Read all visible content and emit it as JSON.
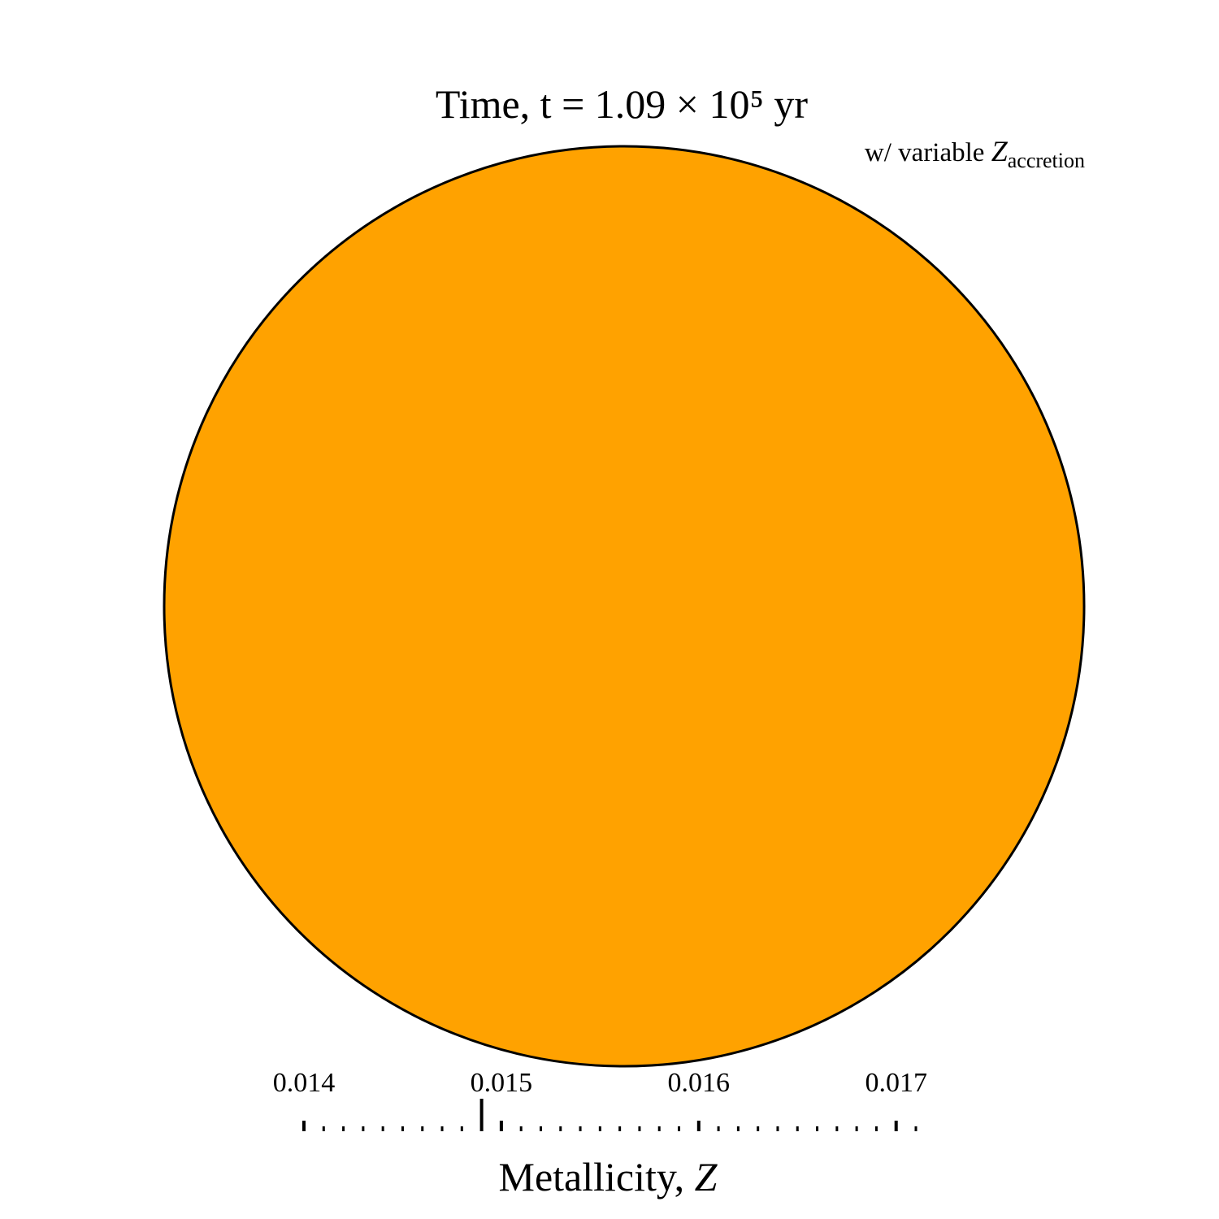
{
  "chart_data": {
    "type": "indicator",
    "title": "Time, t = 1.09 × 10⁵ yr",
    "annotation": [
      "w/ variable ",
      "Z",
      "accretion"
    ],
    "xlabel": [
      "Metallicity, ",
      "Z"
    ],
    "color": "#ffa200",
    "value": 0.0149,
    "xlim": [
      0.014,
      0.0171
    ],
    "xticks": [
      0.014,
      0.015,
      0.016,
      0.017
    ],
    "xminorticks": [
      0.0141,
      0.0142,
      0.0143,
      0.0144,
      0.0145,
      0.0146,
      0.0147,
      0.0148,
      0.0149,
      0.0151,
      0.0152,
      0.0153,
      0.0154,
      0.0155,
      0.0156,
      0.0157,
      0.0158,
      0.0159,
      0.0161,
      0.0162,
      0.0163,
      0.0164,
      0.0165,
      0.0166,
      0.0167,
      0.0168,
      0.0169,
      0.0171
    ]
  }
}
